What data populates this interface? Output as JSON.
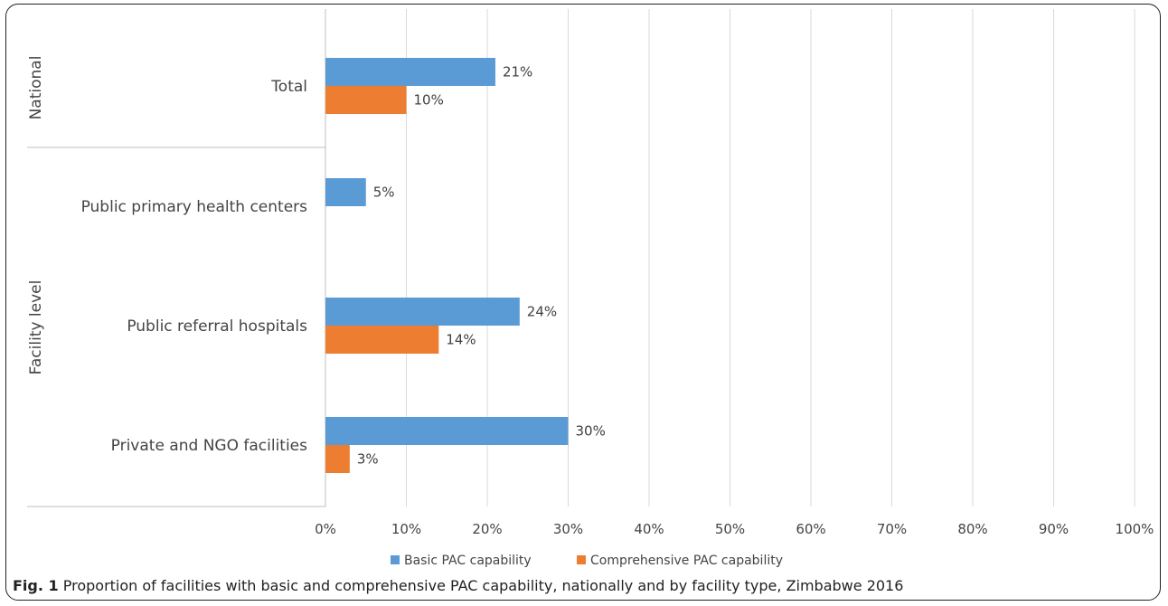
{
  "chart_data": {
    "type": "bar",
    "orientation": "horizontal",
    "groups": [
      {
        "label": "National",
        "categories": [
          "Total"
        ]
      },
      {
        "label": "Facility level",
        "categories": [
          "Public primary health centers",
          "Public referral hospitals",
          "Private and NGO facilities"
        ]
      }
    ],
    "categories": [
      "Total",
      "Public primary health centers",
      "Public referral hospitals",
      "Private and NGO facilities"
    ],
    "series": [
      {
        "name": "Basic PAC capability",
        "color": "#5b9bd5",
        "values": [
          21,
          5,
          24,
          30
        ],
        "labels": [
          "21%",
          "5%",
          "24%",
          "30%"
        ]
      },
      {
        "name": "Comprehensive PAC capability",
        "color": "#ed7d31",
        "values": [
          10,
          null,
          14,
          3
        ],
        "labels": [
          "10%",
          "",
          "14%",
          "3%"
        ]
      }
    ],
    "xlim": [
      0,
      100
    ],
    "xticks": [
      "0%",
      "10%",
      "20%",
      "30%",
      "40%",
      "50%",
      "60%",
      "70%",
      "80%",
      "90%",
      "100%"
    ],
    "grid": true,
    "legend_position": "bottom"
  },
  "caption": {
    "prefix": "Fig. 1",
    "text": " Proportion of facilities with basic and comprehensive PAC capability, nationally and by facility type, Zimbabwe 2016"
  }
}
